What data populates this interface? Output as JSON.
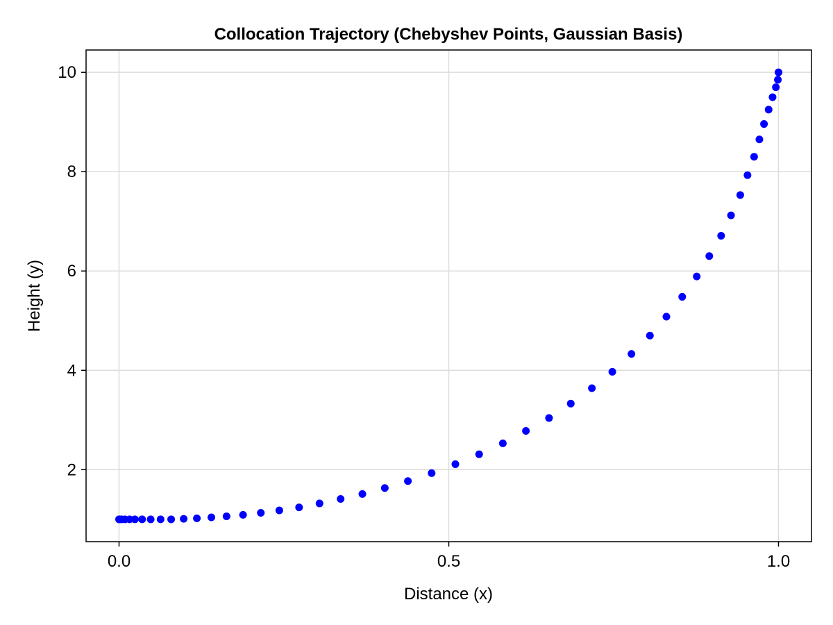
{
  "chart_data": {
    "type": "scatter",
    "title": "Collocation Trajectory (Chebyshev Points, Gaussian Basis)",
    "xlabel": "Distance (x)",
    "ylabel": "Height (y)",
    "xlim": [
      -0.05,
      1.05
    ],
    "ylim": [
      0.55,
      10.45
    ],
    "xticks": [
      0.0,
      0.5,
      1.0
    ],
    "xtick_labels": [
      "0.0",
      "0.5",
      "1.0"
    ],
    "yticks": [
      2,
      4,
      6,
      8,
      10
    ],
    "ytick_labels": [
      "2",
      "4",
      "6",
      "8",
      "10"
    ],
    "grid": true,
    "legend": "none",
    "marker_color": "#0000ff",
    "series": [
      {
        "x": [
          0.0,
          0.001,
          0.004,
          0.009,
          0.016,
          0.024,
          0.035,
          0.048,
          0.063,
          0.079,
          0.098,
          0.118,
          0.14,
          0.163,
          0.188,
          0.215,
          0.243,
          0.273,
          0.304,
          0.336,
          0.369,
          0.403,
          0.438,
          0.474,
          0.51,
          0.546,
          0.582,
          0.617,
          0.652,
          0.685,
          0.717,
          0.748,
          0.777,
          0.805,
          0.83,
          0.854,
          0.876,
          0.895,
          0.913,
          0.928,
          0.942,
          0.953,
          0.963,
          0.971,
          0.978,
          0.985,
          0.991,
          0.996,
          0.999,
          1.0
        ],
        "y": [
          1.0,
          1.0,
          1.0,
          1.0,
          1.0,
          1.0,
          1.0,
          1.0,
          1.0,
          1.0,
          1.01,
          1.02,
          1.04,
          1.06,
          1.09,
          1.13,
          1.18,
          1.24,
          1.32,
          1.41,
          1.51,
          1.63,
          1.77,
          1.93,
          2.11,
          2.31,
          2.53,
          2.78,
          3.04,
          3.33,
          3.64,
          3.97,
          4.33,
          4.7,
          5.08,
          5.48,
          5.89,
          6.3,
          6.71,
          7.12,
          7.53,
          7.93,
          8.3,
          8.65,
          8.96,
          9.25,
          9.5,
          9.7,
          9.85,
          10.0
        ]
      }
    ]
  }
}
